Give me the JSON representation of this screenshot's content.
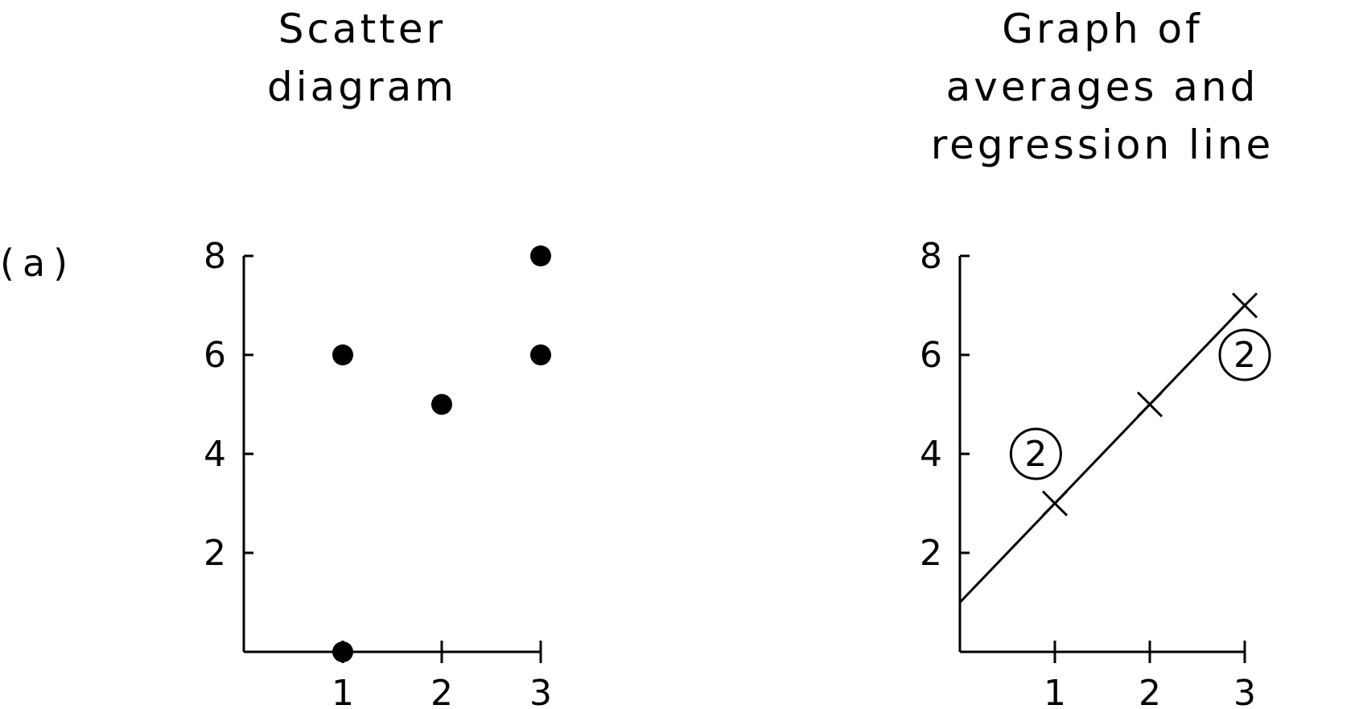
{
  "panel_label": "(a)",
  "chart_data": [
    {
      "type": "scatter",
      "title_lines": [
        "Scatter",
        "diagram"
      ],
      "xlabel": "",
      "ylabel": "",
      "xlim": [
        0,
        3
      ],
      "ylim": [
        0,
        8
      ],
      "x_ticks": [
        "1",
        "2",
        "3"
      ],
      "y_ticks": [
        "2",
        "4",
        "6",
        "8"
      ],
      "series": [
        {
          "x": [
            1,
            1,
            2,
            3,
            3
          ],
          "y": [
            0,
            6,
            5,
            6,
            8
          ]
        }
      ]
    },
    {
      "type": "line",
      "title_lines": [
        "Graph of",
        "averages and",
        "regression line"
      ],
      "xlabel": "",
      "ylabel": "",
      "xlim": [
        0,
        3
      ],
      "ylim": [
        0,
        8
      ],
      "x_ticks": [
        "1",
        "2",
        "3"
      ],
      "y_ticks": [
        "2",
        "4",
        "6",
        "8"
      ],
      "averages": {
        "x": [
          1,
          2,
          3
        ],
        "y": [
          3,
          5,
          7
        ]
      },
      "regression_line": {
        "x": [
          0,
          3
        ],
        "y": [
          1,
          7
        ]
      },
      "annotations": [
        {
          "text": "2",
          "x": 1,
          "y": 3
        },
        {
          "text": "2",
          "x": 3,
          "y": 7
        }
      ]
    }
  ]
}
